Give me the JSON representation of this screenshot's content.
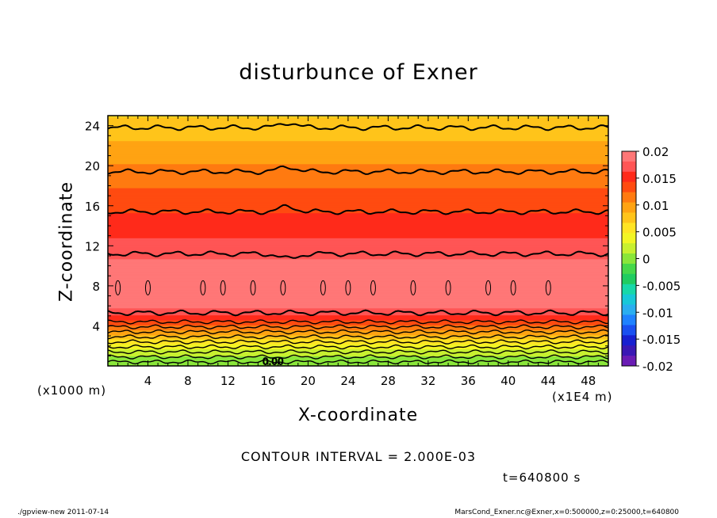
{
  "chart_data": {
    "type": "heatmap",
    "title": "disturbunce of Exner",
    "xlabel": "X-coordinate",
    "ylabel": "Z-coordinate",
    "x_unit": "(x1E4 m)",
    "y_unit": "(x1000 m)",
    "x_ticks": [
      4,
      8,
      12,
      16,
      20,
      24,
      28,
      32,
      36,
      40,
      44,
      48
    ],
    "y_ticks": [
      4,
      8,
      12,
      16,
      20,
      24
    ],
    "xlim": [
      0,
      50
    ],
    "ylim": [
      0,
      25
    ],
    "contour_interval_label": "CONTOUR INTERVAL = 2.000E-03",
    "contour_label": "0.00",
    "time_label": "t=640800 s",
    "colorbar": {
      "labels": [
        "0.02",
        "0.015",
        "0.01",
        "0.005",
        "0",
        "-0.005",
        "-0.01",
        "-0.015",
        "-0.02"
      ],
      "values": [
        0.02,
        0.015,
        0.01,
        0.005,
        0,
        -0.005,
        -0.01,
        -0.015,
        -0.02
      ],
      "colors": [
        "#ff7777",
        "#ff5555",
        "#ff2a1a",
        "#ff4b10",
        "#ff7a10",
        "#ffa312",
        "#ffc41a",
        "#ffe424",
        "#f2f524",
        "#c8f030",
        "#8ae63a",
        "#46d84a",
        "#20cc60",
        "#18d8a8",
        "#18c8d8",
        "#2aaef0",
        "#1f82ff",
        "#1a50f0",
        "#1820d0",
        "#3a18b4",
        "#6a1cb4"
      ]
    },
    "profile": {
      "z": [
        0,
        0.5,
        1,
        1.5,
        2,
        2.5,
        3,
        3.5,
        4,
        4.5,
        5,
        5.5,
        6,
        7,
        8,
        9,
        10,
        11,
        12,
        13,
        14,
        15,
        16,
        17,
        18,
        19,
        20,
        21,
        22,
        23,
        24,
        25
      ],
      "value": [
        -0.001,
        0.0,
        0.001,
        0.002,
        0.004,
        0.006,
        0.008,
        0.01,
        0.012,
        0.014,
        0.016,
        0.0175,
        0.0185,
        0.0195,
        0.0198,
        0.0195,
        0.0188,
        0.0178,
        0.017,
        0.016,
        0.0152,
        0.0145,
        0.0138,
        0.013,
        0.0122,
        0.0114,
        0.0106,
        0.0098,
        0.009,
        0.0082,
        0.0074,
        0.0066
      ]
    },
    "contour_z": [
      0.4,
      0.9,
      1.4,
      1.9,
      2.4,
      2.9,
      3.4,
      3.9,
      4.4,
      5.3,
      11.2,
      15.4,
      19.4,
      23.8
    ]
  },
  "footer": {
    "left": "./gpview-new   2011-07-14",
    "right": "MarsCond_Exner.nc@Exner,x=0:500000,z=0:25000,t=640800"
  }
}
